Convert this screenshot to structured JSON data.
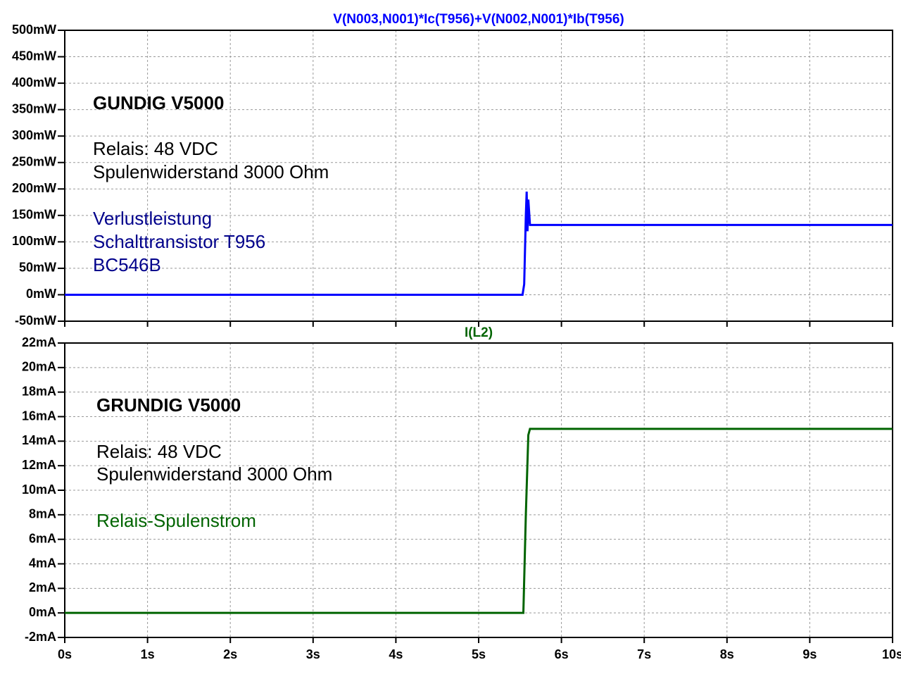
{
  "chart_data": [
    {
      "type": "line",
      "x": [
        0,
        5.53,
        5.55,
        5.57,
        5.58,
        5.59,
        5.6,
        5.62,
        10
      ],
      "series": [
        {
          "name": "V(N003,N001)*Ic(T956)+V(N002,N001)*Ib(T956)",
          "color": "#0000ff",
          "values": [
            0,
            0,
            20,
            150,
            195,
            120,
            180,
            132,
            132
          ]
        }
      ],
      "xlim": [
        0,
        10
      ],
      "xticks": [
        0,
        1,
        2,
        3,
        4,
        5,
        6,
        7,
        8,
        9,
        10
      ],
      "ylim": [
        -50,
        500
      ],
      "yticks": [
        {
          "value": -50,
          "label": "-50mW"
        },
        {
          "value": 0,
          "label": "0mW"
        },
        {
          "value": 50,
          "label": "50mW"
        },
        {
          "value": 100,
          "label": "100mW"
        },
        {
          "value": 150,
          "label": "150mW"
        },
        {
          "value": 200,
          "label": "200mW"
        },
        {
          "value": 250,
          "label": "250mW"
        },
        {
          "value": 300,
          "label": "300mW"
        },
        {
          "value": 350,
          "label": "350mW"
        },
        {
          "value": 400,
          "label": "400mW"
        },
        {
          "value": 450,
          "label": "450mW"
        },
        {
          "value": 500,
          "label": "500mW"
        }
      ],
      "grid": true,
      "annotations": [
        {
          "text": "GUNDIG V5000",
          "color": "#000000",
          "bold": true
        },
        {
          "text": "Relais: 48 VDC",
          "color": "#000000",
          "bold": false
        },
        {
          "text": "Spulenwiderstand 3000 Ohm",
          "color": "#000000",
          "bold": false
        },
        {
          "text": "Verlustleistung",
          "color": "#00008b",
          "bold": false
        },
        {
          "text": "Schalttransistor T956",
          "color": "#00008b",
          "bold": false
        },
        {
          "text": "BC546B",
          "color": "#00008b",
          "bold": false
        }
      ]
    },
    {
      "type": "line",
      "x": [
        0,
        5.54,
        5.57,
        5.6,
        5.62,
        10
      ],
      "series": [
        {
          "name": "I(L2)",
          "color": "#006400",
          "values": [
            0,
            0,
            8,
            14.5,
            15,
            15
          ]
        }
      ],
      "xlim": [
        0,
        10
      ],
      "xticks": [
        {
          "value": 0,
          "label": "0s"
        },
        {
          "value": 1,
          "label": "1s"
        },
        {
          "value": 2,
          "label": "2s"
        },
        {
          "value": 3,
          "label": "3s"
        },
        {
          "value": 4,
          "label": "4s"
        },
        {
          "value": 5,
          "label": "5s"
        },
        {
          "value": 6,
          "label": "6s"
        },
        {
          "value": 7,
          "label": "7s"
        },
        {
          "value": 8,
          "label": "8s"
        },
        {
          "value": 9,
          "label": "9s"
        },
        {
          "value": 10,
          "label": "10s"
        }
      ],
      "ylim": [
        -2,
        22
      ],
      "yticks": [
        {
          "value": -2,
          "label": "-2mA"
        },
        {
          "value": 0,
          "label": "0mA"
        },
        {
          "value": 2,
          "label": "2mA"
        },
        {
          "value": 4,
          "label": "4mA"
        },
        {
          "value": 6,
          "label": "6mA"
        },
        {
          "value": 8,
          "label": "8mA"
        },
        {
          "value": 10,
          "label": "10mA"
        },
        {
          "value": 12,
          "label": "12mA"
        },
        {
          "value": 14,
          "label": "14mA"
        },
        {
          "value": 16,
          "label": "16mA"
        },
        {
          "value": 18,
          "label": "18mA"
        },
        {
          "value": 20,
          "label": "20mA"
        },
        {
          "value": 22,
          "label": "22mA"
        }
      ],
      "grid": true,
      "annotations": [
        {
          "text": "GRUNDIG V5000",
          "color": "#000000",
          "bold": true
        },
        {
          "text": "Relais: 48 VDC",
          "color": "#000000",
          "bold": false
        },
        {
          "text": "Spulenwiderstand 3000 Ohm",
          "color": "#000000",
          "bold": false
        },
        {
          "text": "Relais-Spulenstrom",
          "color": "#006400",
          "bold": false
        }
      ]
    }
  ]
}
